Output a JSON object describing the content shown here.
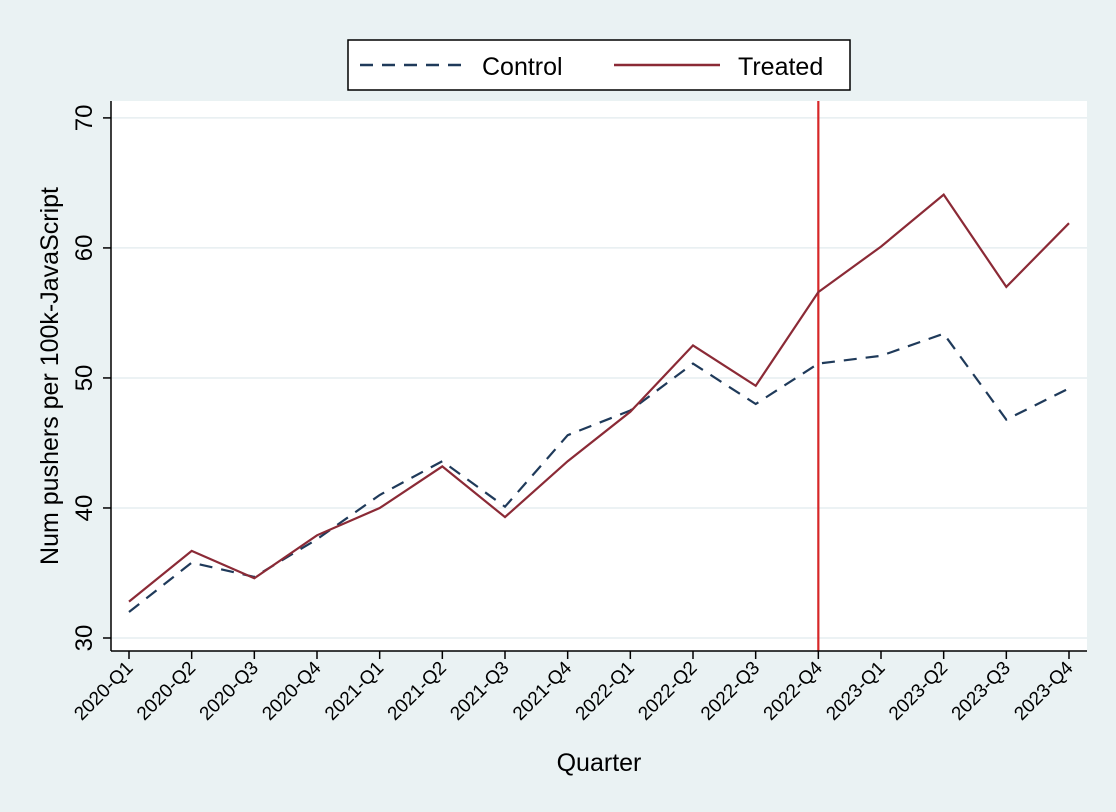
{
  "chart_data": {
    "type": "line",
    "xlabel": "Quarter",
    "ylabel": "Num pushers per 100k-JavaScript",
    "categories": [
      "2020-Q1",
      "2020-Q2",
      "2020-Q3",
      "2020-Q4",
      "2021-Q1",
      "2021-Q2",
      "2021-Q3",
      "2021-Q4",
      "2022-Q1",
      "2022-Q2",
      "2022-Q3",
      "2022-Q4",
      "2023-Q1",
      "2023-Q2",
      "2023-Q3",
      "2023-Q4"
    ],
    "ylim": [
      29,
      71.3
    ],
    "yticks": [
      30,
      40,
      50,
      60,
      70
    ],
    "grid": true,
    "legend_position": "top",
    "vline": {
      "x": "2022-Q4",
      "color": "#d62728"
    },
    "series": [
      {
        "name": "Control",
        "style": "dashed",
        "color": "#1f3a5a",
        "values": [
          32.0,
          35.8,
          34.7,
          37.6,
          41.0,
          43.6,
          40.1,
          45.6,
          47.5,
          51.1,
          48.0,
          51.1,
          51.7,
          53.4,
          46.8,
          49.2
        ]
      },
      {
        "name": "Treated",
        "style": "solid",
        "color": "#8b2a36",
        "values": [
          32.8,
          36.7,
          34.6,
          37.9,
          40.0,
          43.2,
          39.3,
          43.6,
          47.4,
          52.5,
          49.4,
          56.6,
          60.1,
          64.1,
          57.0,
          61.9
        ]
      }
    ]
  }
}
